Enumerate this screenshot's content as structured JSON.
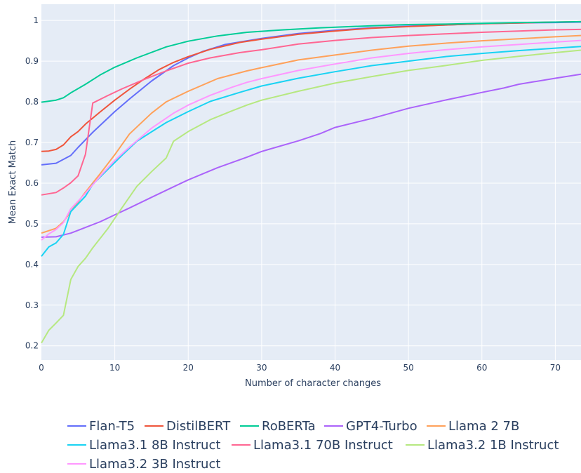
{
  "chart_data": {
    "type": "line",
    "title": "",
    "xlabel": "Number of character changes",
    "ylabel": "Mean Exact Match",
    "xlim": [
      0,
      73.5
    ],
    "ylim": [
      0.165,
      1.04
    ],
    "x_ticks": [
      0,
      10,
      20,
      30,
      40,
      50,
      60,
      70
    ],
    "y_ticks": [
      0.2,
      0.3,
      0.4,
      0.5,
      0.6,
      0.7,
      0.8,
      0.9,
      1
    ],
    "y_tick_labels": [
      "0.2",
      "0.3",
      "0.4",
      "0.5",
      "0.6",
      "0.7",
      "0.8",
      "0.9",
      "1"
    ],
    "grid": true,
    "legend_position": "bottom",
    "series": [
      {
        "name": "Flan-T5",
        "color": "#636efa",
        "points": [
          [
            0,
            0.645
          ],
          [
            2,
            0.649
          ],
          [
            4,
            0.668
          ],
          [
            5,
            0.688
          ],
          [
            7,
            0.725
          ],
          [
            10,
            0.776
          ],
          [
            12,
            0.807
          ],
          [
            15,
            0.851
          ],
          [
            18,
            0.889
          ],
          [
            20,
            0.908
          ],
          [
            22,
            0.924
          ],
          [
            25,
            0.941
          ],
          [
            30,
            0.956
          ],
          [
            35,
            0.968
          ],
          [
            40,
            0.976
          ],
          [
            45,
            0.982
          ],
          [
            50,
            0.986
          ],
          [
            55,
            0.989
          ],
          [
            60,
            0.992
          ],
          [
            65,
            0.994
          ],
          [
            70,
            0.995
          ],
          [
            73.5,
            0.996
          ]
        ]
      },
      {
        "name": "DistilBERT",
        "color": "#ef553b",
        "points": [
          [
            0,
            0.678
          ],
          [
            1,
            0.679
          ],
          [
            2,
            0.683
          ],
          [
            3,
            0.694
          ],
          [
            4,
            0.714
          ],
          [
            5,
            0.727
          ],
          [
            6,
            0.745
          ],
          [
            8,
            0.775
          ],
          [
            10,
            0.804
          ],
          [
            12,
            0.831
          ],
          [
            14,
            0.856
          ],
          [
            16,
            0.879
          ],
          [
            18,
            0.897
          ],
          [
            20,
            0.911
          ],
          [
            23,
            0.929
          ],
          [
            27,
            0.946
          ],
          [
            30,
            0.954
          ],
          [
            35,
            0.966
          ],
          [
            40,
            0.974
          ],
          [
            45,
            0.981
          ],
          [
            50,
            0.985
          ],
          [
            55,
            0.989
          ],
          [
            60,
            0.992
          ],
          [
            65,
            0.994
          ],
          [
            70,
            0.996
          ],
          [
            73.5,
            0.997
          ]
        ]
      },
      {
        "name": "RoBERTa",
        "color": "#00cc96",
        "points": [
          [
            0,
            0.799
          ],
          [
            2,
            0.804
          ],
          [
            3,
            0.81
          ],
          [
            4,
            0.822
          ],
          [
            6,
            0.843
          ],
          [
            8,
            0.866
          ],
          [
            10,
            0.885
          ],
          [
            13,
            0.908
          ],
          [
            17,
            0.935
          ],
          [
            20,
            0.949
          ],
          [
            24,
            0.962
          ],
          [
            28,
            0.971
          ],
          [
            33,
            0.977
          ],
          [
            38,
            0.982
          ],
          [
            45,
            0.987
          ],
          [
            50,
            0.99
          ],
          [
            55,
            0.991
          ],
          [
            60,
            0.993
          ],
          [
            65,
            0.995
          ],
          [
            70,
            0.996
          ],
          [
            73.5,
            0.997
          ]
        ]
      },
      {
        "name": "GPT4-Turbo",
        "color": "#ab63fa",
        "points": [
          [
            0,
            0.467
          ],
          [
            2,
            0.468
          ],
          [
            4,
            0.477
          ],
          [
            5,
            0.484
          ],
          [
            8,
            0.505
          ],
          [
            10,
            0.522
          ],
          [
            12,
            0.539
          ],
          [
            15,
            0.565
          ],
          [
            18,
            0.591
          ],
          [
            20,
            0.608
          ],
          [
            24,
            0.638
          ],
          [
            28,
            0.664
          ],
          [
            30,
            0.678
          ],
          [
            35,
            0.704
          ],
          [
            38,
            0.722
          ],
          [
            40,
            0.737
          ],
          [
            45,
            0.759
          ],
          [
            50,
            0.784
          ],
          [
            55,
            0.804
          ],
          [
            60,
            0.823
          ],
          [
            63,
            0.834
          ],
          [
            65,
            0.843
          ],
          [
            70,
            0.858
          ],
          [
            73.5,
            0.868
          ]
        ]
      },
      {
        "name": "Llama 2 7B",
        "color": "#ffa15a",
        "points": [
          [
            0,
            0.477
          ],
          [
            2,
            0.489
          ],
          [
            3,
            0.505
          ],
          [
            4,
            0.53
          ],
          [
            6,
            0.578
          ],
          [
            8,
            0.623
          ],
          [
            10,
            0.67
          ],
          [
            12,
            0.721
          ],
          [
            15,
            0.772
          ],
          [
            17,
            0.8
          ],
          [
            20,
            0.826
          ],
          [
            24,
            0.857
          ],
          [
            28,
            0.876
          ],
          [
            30,
            0.884
          ],
          [
            35,
            0.903
          ],
          [
            40,
            0.915
          ],
          [
            45,
            0.927
          ],
          [
            50,
            0.937
          ],
          [
            55,
            0.944
          ],
          [
            60,
            0.95
          ],
          [
            65,
            0.955
          ],
          [
            70,
            0.96
          ],
          [
            73.5,
            0.963
          ]
        ]
      },
      {
        "name": "Llama3.1 8B Instruct",
        "color": "#19d3f3",
        "points": [
          [
            0,
            0.42
          ],
          [
            1,
            0.443
          ],
          [
            2,
            0.453
          ],
          [
            3,
            0.474
          ],
          [
            4,
            0.53
          ],
          [
            6,
            0.568
          ],
          [
            7,
            0.597
          ],
          [
            9,
            0.633
          ],
          [
            11,
            0.669
          ],
          [
            13,
            0.703
          ],
          [
            15,
            0.726
          ],
          [
            17,
            0.749
          ],
          [
            20,
            0.776
          ],
          [
            23,
            0.801
          ],
          [
            27,
            0.823
          ],
          [
            30,
            0.839
          ],
          [
            35,
            0.858
          ],
          [
            40,
            0.874
          ],
          [
            45,
            0.889
          ],
          [
            50,
            0.9
          ],
          [
            55,
            0.911
          ],
          [
            60,
            0.919
          ],
          [
            65,
            0.926
          ],
          [
            70,
            0.932
          ],
          [
            73.5,
            0.936
          ]
        ]
      },
      {
        "name": "Llama3.1 70B Instruct",
        "color": "#ff6692",
        "points": [
          [
            0,
            0.571
          ],
          [
            2,
            0.577
          ],
          [
            3,
            0.588
          ],
          [
            4,
            0.601
          ],
          [
            5,
            0.618
          ],
          [
            6,
            0.671
          ],
          [
            7,
            0.797
          ],
          [
            9,
            0.815
          ],
          [
            11,
            0.832
          ],
          [
            14,
            0.855
          ],
          [
            17,
            0.876
          ],
          [
            20,
            0.895
          ],
          [
            23,
            0.908
          ],
          [
            27,
            0.921
          ],
          [
            30,
            0.928
          ],
          [
            35,
            0.942
          ],
          [
            40,
            0.951
          ],
          [
            45,
            0.958
          ],
          [
            50,
            0.963
          ],
          [
            55,
            0.967
          ],
          [
            60,
            0.971
          ],
          [
            65,
            0.974
          ],
          [
            70,
            0.977
          ],
          [
            73.5,
            0.978
          ]
        ]
      },
      {
        "name": "Llama3.2 1B Instruct",
        "color": "#b6e880",
        "points": [
          [
            0,
            0.207
          ],
          [
            1,
            0.238
          ],
          [
            2,
            0.256
          ],
          [
            3,
            0.275
          ],
          [
            4,
            0.363
          ],
          [
            5,
            0.395
          ],
          [
            6,
            0.415
          ],
          [
            7,
            0.441
          ],
          [
            9,
            0.487
          ],
          [
            11,
            0.54
          ],
          [
            13,
            0.592
          ],
          [
            15,
            0.628
          ],
          [
            17,
            0.662
          ],
          [
            18,
            0.703
          ],
          [
            20,
            0.727
          ],
          [
            23,
            0.756
          ],
          [
            26,
            0.778
          ],
          [
            28,
            0.792
          ],
          [
            30,
            0.804
          ],
          [
            35,
            0.826
          ],
          [
            40,
            0.846
          ],
          [
            45,
            0.862
          ],
          [
            50,
            0.877
          ],
          [
            55,
            0.889
          ],
          [
            60,
            0.902
          ],
          [
            65,
            0.912
          ],
          [
            70,
            0.921
          ],
          [
            73.5,
            0.927
          ]
        ]
      },
      {
        "name": "Llama3.2 3B Instruct",
        "color": "#ff97ff",
        "points": [
          [
            0,
            0.46
          ],
          [
            1,
            0.475
          ],
          [
            2,
            0.486
          ],
          [
            3,
            0.503
          ],
          [
            4,
            0.537
          ],
          [
            6,
            0.575
          ],
          [
            8,
            0.617
          ],
          [
            10,
            0.656
          ],
          [
            12,
            0.689
          ],
          [
            15,
            0.735
          ],
          [
            18,
            0.772
          ],
          [
            20,
            0.792
          ],
          [
            23,
            0.816
          ],
          [
            26,
            0.836
          ],
          [
            28,
            0.848
          ],
          [
            30,
            0.857
          ],
          [
            35,
            0.877
          ],
          [
            40,
            0.893
          ],
          [
            45,
            0.908
          ],
          [
            50,
            0.919
          ],
          [
            55,
            0.928
          ],
          [
            60,
            0.935
          ],
          [
            65,
            0.941
          ],
          [
            70,
            0.947
          ],
          [
            73.5,
            0.951
          ]
        ]
      }
    ]
  }
}
